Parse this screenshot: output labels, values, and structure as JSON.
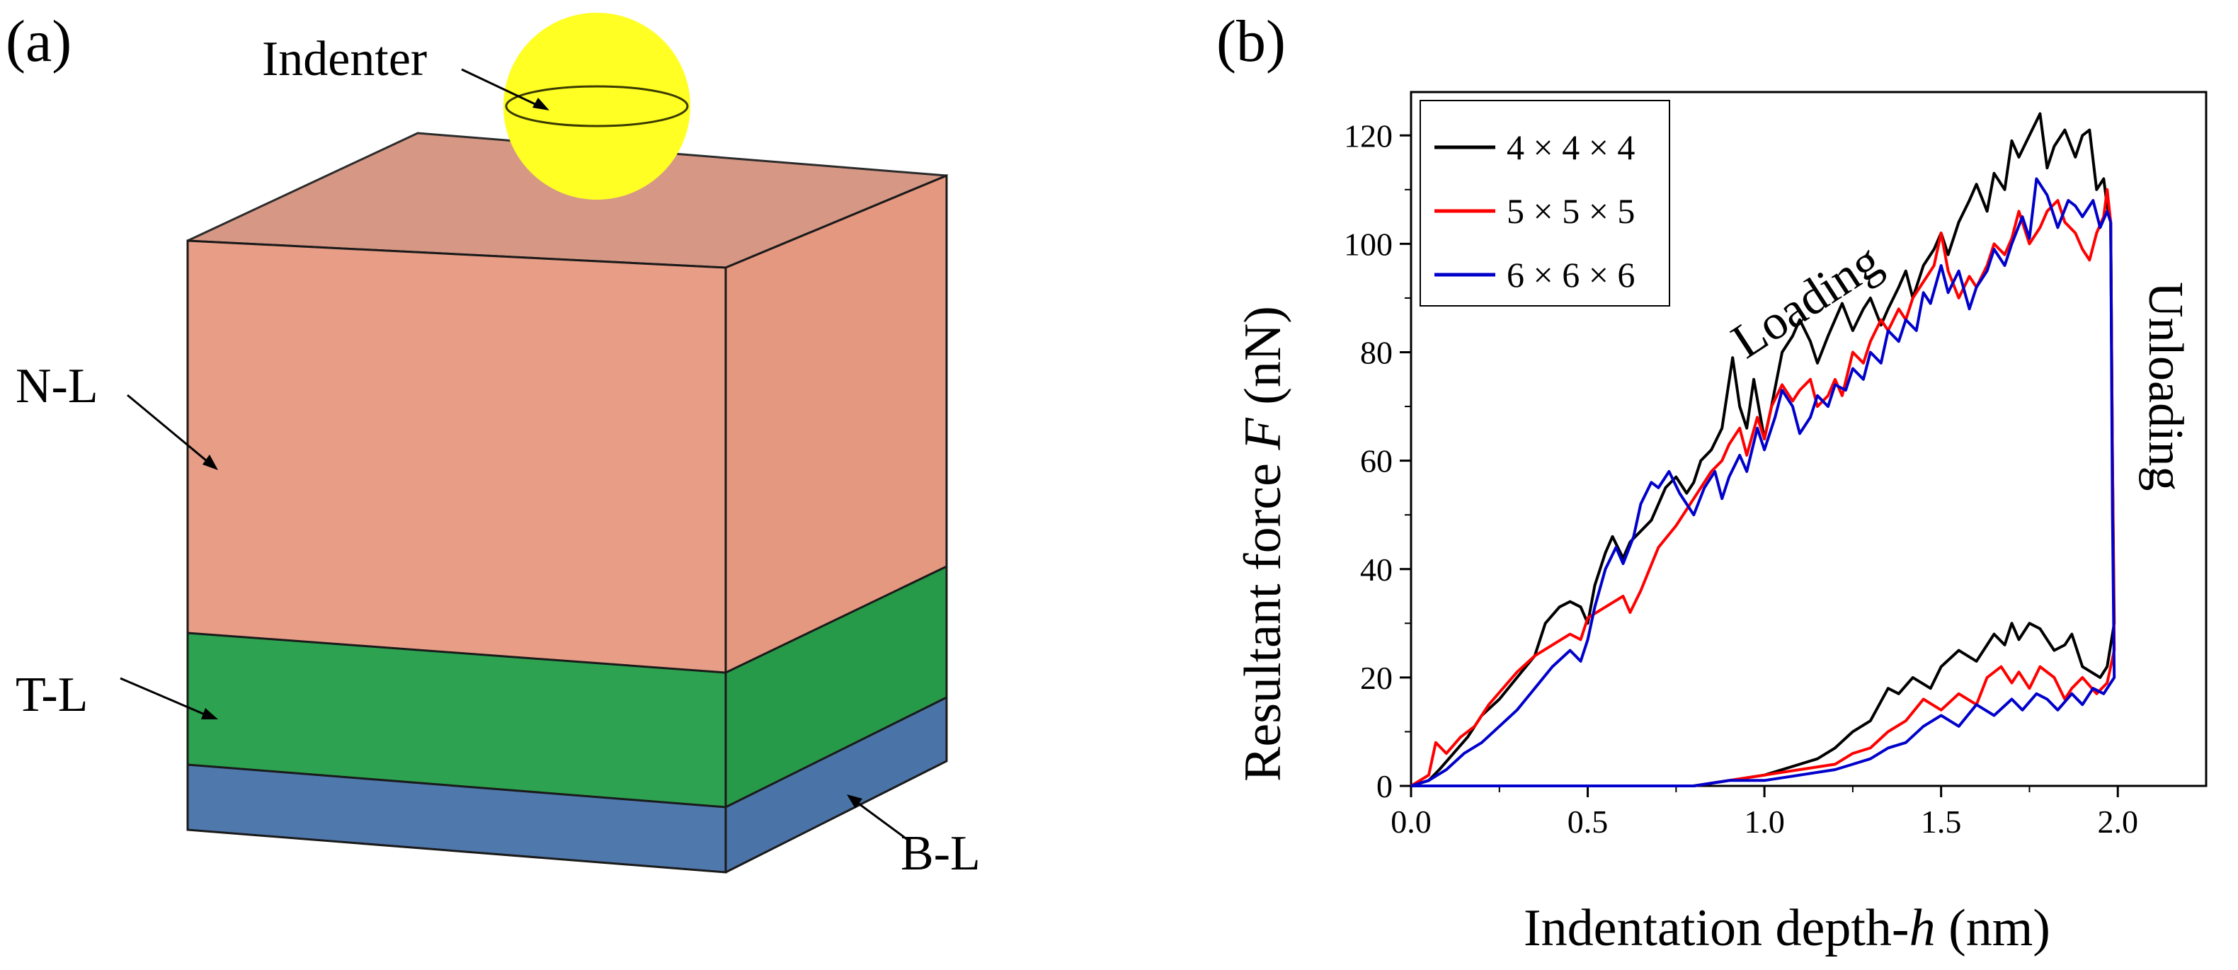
{
  "panel_a": {
    "label": "(a)",
    "indenter_label": "Indenter",
    "layers": [
      {
        "label": "N-L",
        "color": "#e89d86"
      },
      {
        "label": "T-L",
        "color": "#2da250"
      },
      {
        "label": "B-L",
        "color": "#4f78ad"
      }
    ],
    "indenter_color": "#ffff24"
  },
  "panel_b": {
    "label": "(b)",
    "annotations": {
      "loading": "Loading",
      "unloading": "Unloading"
    }
  },
  "chart_data": {
    "type": "line",
    "title": "",
    "xlabel_parts": [
      "Indentation depth-",
      "h",
      " (nm)"
    ],
    "ylabel_parts": [
      "Resultant force ",
      "F",
      " (nN)"
    ],
    "xlim": [
      0.0,
      2.25
    ],
    "ylim": [
      0,
      128
    ],
    "xticks": [
      0.0,
      0.5,
      1.0,
      1.5,
      2.0
    ],
    "xtick_labels": [
      "0.0",
      "0.5",
      "1.0",
      "1.5",
      "2.0"
    ],
    "yticks": [
      0,
      20,
      40,
      60,
      80,
      100,
      120
    ],
    "ytick_labels": [
      "0",
      "20",
      "40",
      "60",
      "80",
      "100",
      "120"
    ],
    "legend_position": "top-left",
    "series": [
      {
        "name": "4 × 4 × 4",
        "color": "#000000",
        "loading": [
          [
            0.0,
            0
          ],
          [
            0.05,
            1
          ],
          [
            0.08,
            3
          ],
          [
            0.12,
            6
          ],
          [
            0.16,
            9
          ],
          [
            0.2,
            13
          ],
          [
            0.25,
            16
          ],
          [
            0.3,
            20
          ],
          [
            0.35,
            24
          ],
          [
            0.38,
            30
          ],
          [
            0.42,
            33
          ],
          [
            0.45,
            34
          ],
          [
            0.48,
            33
          ],
          [
            0.5,
            30
          ],
          [
            0.52,
            37
          ],
          [
            0.55,
            43
          ],
          [
            0.57,
            46
          ],
          [
            0.6,
            42
          ],
          [
            0.62,
            45
          ],
          [
            0.65,
            47
          ],
          [
            0.68,
            49
          ],
          [
            0.7,
            52
          ],
          [
            0.72,
            55
          ],
          [
            0.75,
            57
          ],
          [
            0.78,
            54
          ],
          [
            0.8,
            56
          ],
          [
            0.82,
            60
          ],
          [
            0.85,
            62
          ],
          [
            0.88,
            66
          ],
          [
            0.91,
            79
          ],
          [
            0.93,
            70
          ],
          [
            0.95,
            66
          ],
          [
            0.97,
            75
          ],
          [
            1.0,
            64
          ],
          [
            1.02,
            70
          ],
          [
            1.05,
            80
          ],
          [
            1.08,
            83
          ],
          [
            1.1,
            86
          ],
          [
            1.13,
            82
          ],
          [
            1.15,
            78
          ],
          [
            1.18,
            83
          ],
          [
            1.2,
            86
          ],
          [
            1.22,
            89
          ],
          [
            1.25,
            84
          ],
          [
            1.28,
            88
          ],
          [
            1.3,
            90
          ],
          [
            1.33,
            85
          ],
          [
            1.35,
            88
          ],
          [
            1.38,
            92
          ],
          [
            1.4,
            95
          ],
          [
            1.42,
            90
          ],
          [
            1.45,
            96
          ],
          [
            1.48,
            99
          ],
          [
            1.5,
            102
          ],
          [
            1.52,
            98
          ],
          [
            1.55,
            104
          ],
          [
            1.58,
            108
          ],
          [
            1.6,
            111
          ],
          [
            1.63,
            106
          ],
          [
            1.65,
            113
          ],
          [
            1.68,
            110
          ],
          [
            1.7,
            119
          ],
          [
            1.72,
            116
          ],
          [
            1.75,
            120
          ],
          [
            1.78,
            124
          ],
          [
            1.8,
            114
          ],
          [
            1.82,
            118
          ],
          [
            1.85,
            121
          ],
          [
            1.88,
            116
          ],
          [
            1.9,
            120
          ],
          [
            1.92,
            121
          ],
          [
            1.94,
            110
          ],
          [
            1.96,
            112
          ],
          [
            1.97,
            107
          ],
          [
            1.98,
            104
          ]
        ],
        "unloading": [
          [
            1.98,
            104
          ],
          [
            1.985,
            60
          ],
          [
            1.99,
            30
          ],
          [
            1.97,
            22
          ],
          [
            1.95,
            20
          ],
          [
            1.9,
            22
          ],
          [
            1.87,
            28
          ],
          [
            1.85,
            26
          ],
          [
            1.82,
            25
          ],
          [
            1.78,
            29
          ],
          [
            1.75,
            30
          ],
          [
            1.72,
            27
          ],
          [
            1.7,
            30
          ],
          [
            1.68,
            26
          ],
          [
            1.65,
            28
          ],
          [
            1.6,
            23
          ],
          [
            1.55,
            25
          ],
          [
            1.5,
            22
          ],
          [
            1.47,
            18
          ],
          [
            1.42,
            20
          ],
          [
            1.38,
            17
          ],
          [
            1.35,
            18
          ],
          [
            1.3,
            12
          ],
          [
            1.25,
            10
          ],
          [
            1.2,
            7
          ],
          [
            1.15,
            5
          ],
          [
            1.1,
            4
          ],
          [
            1.05,
            3
          ],
          [
            1.0,
            2
          ],
          [
            0.9,
            1
          ],
          [
            0.8,
            0
          ],
          [
            0.0,
            0
          ]
        ]
      },
      {
        "name": "5 × 5 × 5",
        "color": "#ff0000",
        "loading": [
          [
            0.0,
            0
          ],
          [
            0.05,
            2
          ],
          [
            0.07,
            8
          ],
          [
            0.1,
            6
          ],
          [
            0.14,
            9
          ],
          [
            0.18,
            11
          ],
          [
            0.22,
            15
          ],
          [
            0.26,
            18
          ],
          [
            0.3,
            21
          ],
          [
            0.35,
            24
          ],
          [
            0.4,
            26
          ],
          [
            0.45,
            28
          ],
          [
            0.48,
            27
          ],
          [
            0.5,
            31
          ],
          [
            0.55,
            33
          ],
          [
            0.6,
            35
          ],
          [
            0.62,
            32
          ],
          [
            0.65,
            36
          ],
          [
            0.7,
            44
          ],
          [
            0.75,
            48
          ],
          [
            0.8,
            53
          ],
          [
            0.85,
            58
          ],
          [
            0.88,
            60
          ],
          [
            0.9,
            63
          ],
          [
            0.93,
            66
          ],
          [
            0.95,
            61
          ],
          [
            0.98,
            68
          ],
          [
            1.0,
            64
          ],
          [
            1.02,
            70
          ],
          [
            1.05,
            74
          ],
          [
            1.08,
            71
          ],
          [
            1.1,
            73
          ],
          [
            1.13,
            75
          ],
          [
            1.15,
            70
          ],
          [
            1.18,
            72
          ],
          [
            1.2,
            75
          ],
          [
            1.22,
            72
          ],
          [
            1.25,
            80
          ],
          [
            1.28,
            78
          ],
          [
            1.3,
            82
          ],
          [
            1.33,
            86
          ],
          [
            1.35,
            84
          ],
          [
            1.38,
            88
          ],
          [
            1.4,
            86
          ],
          [
            1.42,
            90
          ],
          [
            1.45,
            93
          ],
          [
            1.48,
            96
          ],
          [
            1.5,
            102
          ],
          [
            1.52,
            95
          ],
          [
            1.55,
            90
          ],
          [
            1.58,
            94
          ],
          [
            1.6,
            92
          ],
          [
            1.63,
            96
          ],
          [
            1.65,
            100
          ],
          [
            1.68,
            98
          ],
          [
            1.7,
            101
          ],
          [
            1.72,
            106
          ],
          [
            1.75,
            100
          ],
          [
            1.78,
            103
          ],
          [
            1.8,
            106
          ],
          [
            1.83,
            108
          ],
          [
            1.85,
            104
          ],
          [
            1.88,
            102
          ],
          [
            1.9,
            99
          ],
          [
            1.92,
            97
          ],
          [
            1.94,
            102
          ],
          [
            1.96,
            105
          ],
          [
            1.97,
            110
          ],
          [
            1.98,
            104
          ]
        ],
        "unloading": [
          [
            1.98,
            104
          ],
          [
            1.985,
            60
          ],
          [
            1.99,
            25
          ],
          [
            1.97,
            19
          ],
          [
            1.94,
            17
          ],
          [
            1.9,
            20
          ],
          [
            1.87,
            18
          ],
          [
            1.85,
            16
          ],
          [
            1.82,
            20
          ],
          [
            1.78,
            22
          ],
          [
            1.75,
            18
          ],
          [
            1.72,
            21
          ],
          [
            1.7,
            19
          ],
          [
            1.67,
            22
          ],
          [
            1.63,
            20
          ],
          [
            1.6,
            15
          ],
          [
            1.55,
            17
          ],
          [
            1.5,
            14
          ],
          [
            1.45,
            16
          ],
          [
            1.4,
            12
          ],
          [
            1.35,
            10
          ],
          [
            1.3,
            7
          ],
          [
            1.25,
            6
          ],
          [
            1.2,
            4
          ],
          [
            1.1,
            3
          ],
          [
            1.0,
            2
          ],
          [
            0.9,
            1
          ],
          [
            0.8,
            0
          ],
          [
            0.0,
            0
          ]
        ]
      },
      {
        "name": "6 × 6 × 6",
        "color": "#0000cc",
        "loading": [
          [
            0.0,
            0
          ],
          [
            0.05,
            1
          ],
          [
            0.1,
            3
          ],
          [
            0.15,
            6
          ],
          [
            0.2,
            8
          ],
          [
            0.25,
            11
          ],
          [
            0.3,
            14
          ],
          [
            0.35,
            18
          ],
          [
            0.4,
            22
          ],
          [
            0.45,
            25
          ],
          [
            0.48,
            23
          ],
          [
            0.5,
            27
          ],
          [
            0.52,
            33
          ],
          [
            0.55,
            40
          ],
          [
            0.58,
            44
          ],
          [
            0.6,
            41
          ],
          [
            0.63,
            46
          ],
          [
            0.65,
            52
          ],
          [
            0.68,
            56
          ],
          [
            0.7,
            55
          ],
          [
            0.73,
            58
          ],
          [
            0.76,
            54
          ],
          [
            0.8,
            50
          ],
          [
            0.83,
            55
          ],
          [
            0.86,
            58
          ],
          [
            0.88,
            53
          ],
          [
            0.9,
            57
          ],
          [
            0.93,
            61
          ],
          [
            0.95,
            58
          ],
          [
            0.98,
            66
          ],
          [
            1.0,
            62
          ],
          [
            1.03,
            68
          ],
          [
            1.05,
            73
          ],
          [
            1.08,
            70
          ],
          [
            1.1,
            65
          ],
          [
            1.13,
            68
          ],
          [
            1.15,
            72
          ],
          [
            1.18,
            70
          ],
          [
            1.2,
            74
          ],
          [
            1.23,
            73
          ],
          [
            1.25,
            77
          ],
          [
            1.28,
            75
          ],
          [
            1.3,
            80
          ],
          [
            1.33,
            78
          ],
          [
            1.35,
            84
          ],
          [
            1.38,
            82
          ],
          [
            1.4,
            86
          ],
          [
            1.43,
            84
          ],
          [
            1.45,
            91
          ],
          [
            1.47,
            89
          ],
          [
            1.5,
            96
          ],
          [
            1.52,
            91
          ],
          [
            1.55,
            95
          ],
          [
            1.58,
            88
          ],
          [
            1.6,
            92
          ],
          [
            1.63,
            95
          ],
          [
            1.65,
            99
          ],
          [
            1.68,
            96
          ],
          [
            1.7,
            100
          ],
          [
            1.73,
            105
          ],
          [
            1.75,
            101
          ],
          [
            1.77,
            112
          ],
          [
            1.8,
            109
          ],
          [
            1.83,
            103
          ],
          [
            1.86,
            108
          ],
          [
            1.88,
            107
          ],
          [
            1.9,
            105
          ],
          [
            1.93,
            108
          ],
          [
            1.95,
            103
          ],
          [
            1.97,
            106
          ],
          [
            1.98,
            104
          ]
        ],
        "unloading": [
          [
            1.98,
            104
          ],
          [
            1.985,
            50
          ],
          [
            1.99,
            20
          ],
          [
            1.96,
            17
          ],
          [
            1.93,
            18
          ],
          [
            1.9,
            15
          ],
          [
            1.87,
            17
          ],
          [
            1.83,
            14
          ],
          [
            1.8,
            16
          ],
          [
            1.77,
            17
          ],
          [
            1.73,
            14
          ],
          [
            1.7,
            16
          ],
          [
            1.65,
            13
          ],
          [
            1.6,
            15
          ],
          [
            1.55,
            11
          ],
          [
            1.5,
            13
          ],
          [
            1.45,
            11
          ],
          [
            1.4,
            8
          ],
          [
            1.35,
            7
          ],
          [
            1.3,
            5
          ],
          [
            1.25,
            4
          ],
          [
            1.2,
            3
          ],
          [
            1.1,
            2
          ],
          [
            1.0,
            1
          ],
          [
            0.9,
            1
          ],
          [
            0.8,
            0
          ],
          [
            0.0,
            0
          ]
        ]
      }
    ]
  }
}
